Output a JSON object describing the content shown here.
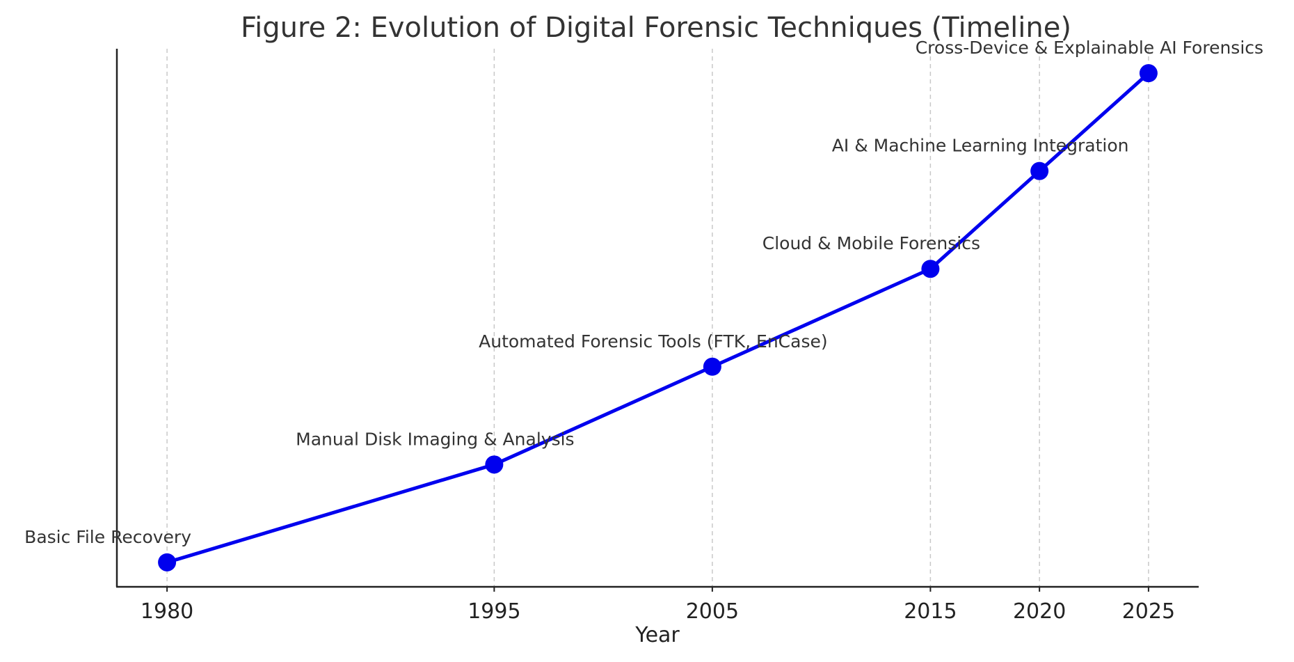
{
  "chart_data": {
    "type": "line",
    "title": "Figure 2: Evolution of Digital Forensic Techniques (Timeline)",
    "xlabel": "Year",
    "ylabel": "",
    "x": [
      1980,
      1995,
      2005,
      2015,
      2020,
      2025
    ],
    "xticks": [
      "1980",
      "1995",
      "2005",
      "2015",
      "2020",
      "2025"
    ],
    "y": [
      1,
      2,
      3,
      4,
      5,
      6
    ],
    "xlim": [
      1977.7,
      2027.3
    ],
    "ylim": [
      0.75,
      6.25
    ],
    "labels": [
      "Basic File Recovery",
      "Manual Disk Imaging & Analysis",
      "Automated Forensic Tools (FTK, EnCase)",
      "Cloud & Mobile Forensics",
      "AI & Machine Learning Integration",
      "Cross-Device & Explainable AI Forensics"
    ],
    "y_axis_ticks_shown": false,
    "grid": "vertical dashed at x ticks",
    "colors": {
      "series": "#0000ee",
      "grid": "#c8c8c8",
      "axis": "#222222",
      "text": "#333333"
    }
  }
}
